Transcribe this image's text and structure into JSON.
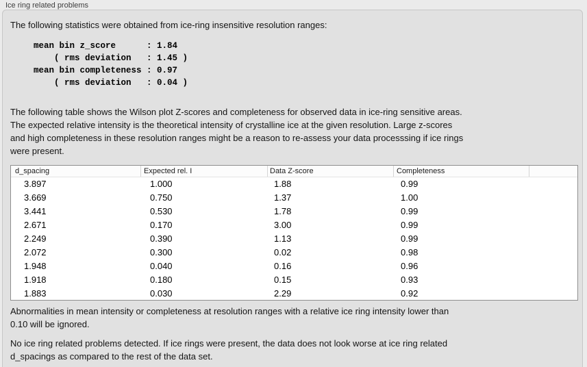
{
  "panel": {
    "title": "Ice ring related problems"
  },
  "stats": {
    "intro": "The following statistics were obtained from ice-ring insensitive resolution ranges:",
    "block": "mean bin z_score      : 1.84\n    ( rms deviation   : 1.45 )\nmean bin completeness : 0.97\n    ( rms deviation   : 0.04 )"
  },
  "description": "The following table shows the Wilson plot Z-scores and completeness for observed data in ice-ring sensitive areas.\nThe expected relative intensity is the theoretical intensity of crystalline ice at the given resolution. Large z-scores\nand high completeness in these resolution ranges might be a reason to re-assess your data processsing if ice rings\nwere present.",
  "table": {
    "columns": [
      "d_spacing",
      "Expected rel. I",
      "Data Z-score",
      "Completeness"
    ],
    "rows": [
      [
        "3.897",
        "1.000",
        "1.88",
        "0.99"
      ],
      [
        "3.669",
        "0.750",
        "1.37",
        "1.00"
      ],
      [
        "3.441",
        "0.530",
        "1.78",
        "0.99"
      ],
      [
        "2.671",
        "0.170",
        "3.00",
        "0.99"
      ],
      [
        "2.249",
        "0.390",
        "1.13",
        "0.99"
      ],
      [
        "2.072",
        "0.300",
        "0.02",
        "0.98"
      ],
      [
        "1.948",
        "0.040",
        "0.16",
        "0.96"
      ],
      [
        "1.918",
        "0.180",
        "0.15",
        "0.93"
      ],
      [
        "1.883",
        "0.030",
        "2.29",
        "0.92"
      ]
    ]
  },
  "notes": {
    "ignore_note": "Abnormalities in mean intensity or completeness at resolution ranges with a relative ice ring intensity lower than\n0.10 will be ignored.",
    "conclusion": "No ice ring related problems detected. If ice rings were present, the data does not look worse at ice ring related\nd_spacings as compared to the rest of the data set."
  },
  "colors": {
    "page_bg": "#ebebeb",
    "box_bg": "#e1e1e1",
    "box_border": "#c6c6c6",
    "table_bg": "#ffffff",
    "table_border": "#8e8e8e",
    "header_separator": "#d4d4d4",
    "text": "#141414"
  }
}
